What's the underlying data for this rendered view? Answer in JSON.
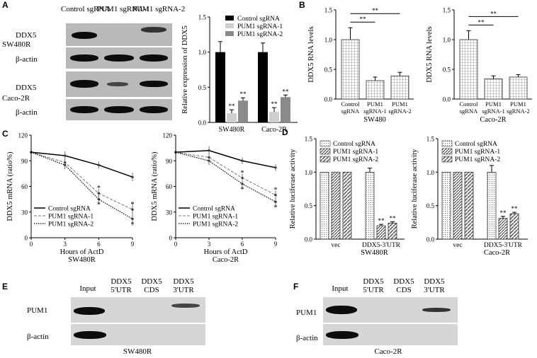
{
  "panels": {
    "A": {
      "letter": "A",
      "lanes": [
        "Control sgRNA",
        "PUM1 sgRNA-1",
        "PUM1 sgRNA-2"
      ],
      "rows": [
        {
          "cell": "SW480R",
          "proteins": [
            "DDX5",
            "β-actin"
          ]
        },
        {
          "cell": "Caco-2R",
          "proteins": [
            "DDX5",
            "β-actin"
          ]
        }
      ],
      "bar_chart": {
        "type": "bar",
        "ylabel": "Relative expression of DDX5",
        "ylim": [
          0,
          1.5
        ],
        "yticks": [
          "0.0",
          "0.5",
          "1.0",
          "1.5"
        ],
        "categories": [
          "SW480R",
          "Caco-2R"
        ],
        "series": [
          {
            "name": "Control sgRNA",
            "values": [
              1.0,
              1.0
            ],
            "errors": [
              0.15,
              0.13
            ],
            "color": "#000000"
          },
          {
            "name": "PUM1 sgRNA-1",
            "values": [
              0.13,
              0.15
            ],
            "errors": [
              0.05,
              0.06
            ],
            "color": "#cfcfcf"
          },
          {
            "name": "PUM1 sgRNA-2",
            "values": [
              0.31,
              0.36
            ],
            "errors": [
              0.04,
              0.03
            ],
            "color": "#8a8a8a"
          }
        ],
        "sig": [
          "**",
          "**",
          "**",
          "**"
        ]
      }
    },
    "B": {
      "letter": "B",
      "charts": [
        {
          "type": "bar",
          "ylabel": "DDX5 RNA levels",
          "xlabel": "SW480",
          "ylim": [
            0,
            1.5
          ],
          "yticks": [
            "0.0",
            "0.5",
            "1.0",
            "1.5"
          ],
          "categories": [
            "Control sgRNA",
            "PUM1 sgRNA-1",
            "PUM1 sgRNA-2"
          ],
          "values": [
            1.0,
            0.31,
            0.39
          ],
          "errors": [
            0.2,
            0.06,
            0.06
          ],
          "sig": [
            "**",
            "**"
          ]
        },
        {
          "type": "bar",
          "ylabel": "DDX5 RNA levels",
          "xlabel": "Caco-2R",
          "ylim": [
            0,
            1.5
          ],
          "yticks": [
            "0.0",
            "0.5",
            "1.0",
            "1.5"
          ],
          "categories": [
            "Control sgRNA",
            "PUM1 sgRNA-1",
            "PUM1 sgRNA-2"
          ],
          "values": [
            1.0,
            0.34,
            0.37
          ],
          "errors": [
            0.15,
            0.05,
            0.04
          ],
          "sig": [
            "**",
            "**"
          ]
        }
      ]
    },
    "C": {
      "letter": "C",
      "charts": [
        {
          "type": "line",
          "ylabel": "DDX5 mRNA (ratio%)",
          "xlabel": "Hours of ActD",
          "subtitle": "SW480R",
          "x": [
            0,
            3,
            6,
            9
          ],
          "xticks": [
            "0",
            "3",
            "6",
            "9"
          ],
          "ylim": [
            0,
            120
          ],
          "yticks": [
            "0",
            "30",
            "60",
            "90",
            "120"
          ],
          "series": [
            {
              "name": "Control sgRNA",
              "values": [
                100,
                96,
                85,
                71
              ],
              "errors": [
                0,
                5,
                4,
                5
              ]
            },
            {
              "name": "PUM1 sgRNA-1",
              "values": [
                100,
                88,
                52,
                33
              ],
              "errors": [
                0,
                5,
                5,
                8
              ]
            },
            {
              "name": "PUM1 sgRNA-2",
              "values": [
                100,
                85,
                45,
                22
              ],
              "errors": [
                0,
                5,
                5,
                8
              ]
            }
          ]
        },
        {
          "type": "line",
          "ylabel": "DDX5 mRNA (ratio%)",
          "xlabel": "Hours of ActD",
          "subtitle": "Caco-2R",
          "x": [
            0,
            3,
            6,
            9
          ],
          "xticks": [
            "0",
            "3",
            "6",
            "9"
          ],
          "ylim": [
            0,
            120
          ],
          "yticks": [
            "0",
            "30",
            "60",
            "90",
            "120"
          ],
          "series": [
            {
              "name": "Control sgRNA",
              "values": [
                100,
                102,
                90,
                82
              ],
              "errors": [
                0,
                5,
                4,
                4
              ]
            },
            {
              "name": "PUM1 sgRNA-1",
              "values": [
                100,
                94,
                70,
                50
              ],
              "errors": [
                0,
                5,
                5,
                5
              ]
            },
            {
              "name": "PUM1 sgRNA-2",
              "values": [
                100,
                90,
                63,
                42
              ],
              "errors": [
                0,
                5,
                5,
                5
              ]
            }
          ]
        }
      ]
    },
    "D": {
      "letter": "D",
      "charts": [
        {
          "type": "bar",
          "ylabel": "Relative luciferase activity",
          "subtitle": "SW480R",
          "categories": [
            "vec",
            "DDX5-3'UTR"
          ],
          "ylim": [
            0,
            1.5
          ],
          "yticks": [
            "0.0",
            "0.5",
            "1.0",
            "1.5"
          ],
          "series": [
            {
              "name": "Control sgRNA",
              "values": [
                1.0,
                1.0
              ],
              "errors": [
                0,
                0.06
              ]
            },
            {
              "name": "PUM1 sgRNA-1",
              "values": [
                1.0,
                0.2
              ],
              "errors": [
                0,
                0.02
              ]
            },
            {
              "name": "PUM1 sgRNA-2",
              "values": [
                1.0,
                0.24
              ],
              "errors": [
                0,
                0.02
              ]
            }
          ],
          "sig": [
            "**",
            "**"
          ]
        },
        {
          "type": "bar",
          "ylabel": "Relative luciferase activity",
          "subtitle": "Caco-2R",
          "categories": [
            "vec",
            "DDX5-3'UTR"
          ],
          "ylim": [
            0,
            1.5
          ],
          "yticks": [
            "0.0",
            "0.5",
            "1.0",
            "1.5"
          ],
          "series": [
            {
              "name": "Control sgRNA",
              "values": [
                1.0,
                1.0
              ],
              "errors": [
                0,
                0.1
              ]
            },
            {
              "name": "PUM1 sgRNA-1",
              "values": [
                1.0,
                0.31
              ],
              "errors": [
                0,
                0.03
              ]
            },
            {
              "name": "PUM1 sgRNA-2",
              "values": [
                1.0,
                0.38
              ],
              "errors": [
                0,
                0.02
              ]
            }
          ],
          "sig": [
            "**",
            "**"
          ]
        }
      ]
    },
    "E": {
      "letter": "E",
      "cell": "SW480R",
      "lanes": [
        "Input",
        "DDX5 5'UTR",
        "DDX5 CDS",
        "DDX5 3'UTR"
      ],
      "proteins": [
        "PUM1",
        "β-actin"
      ]
    },
    "F": {
      "letter": "F",
      "cell": "Caco-2R",
      "lanes": [
        "Input",
        "DDX5 5'UTR",
        "DDX5 CDS",
        "DDX5 3'UTR"
      ],
      "proteins": [
        "PUM1",
        "β-actin"
      ]
    }
  },
  "colors": {
    "bar_black": "#000000",
    "bar_light": "#cfcfcf",
    "bar_mid": "#8a8a8a",
    "blot_bg": "#b9b9b9",
    "band": "#0c0c0c"
  }
}
